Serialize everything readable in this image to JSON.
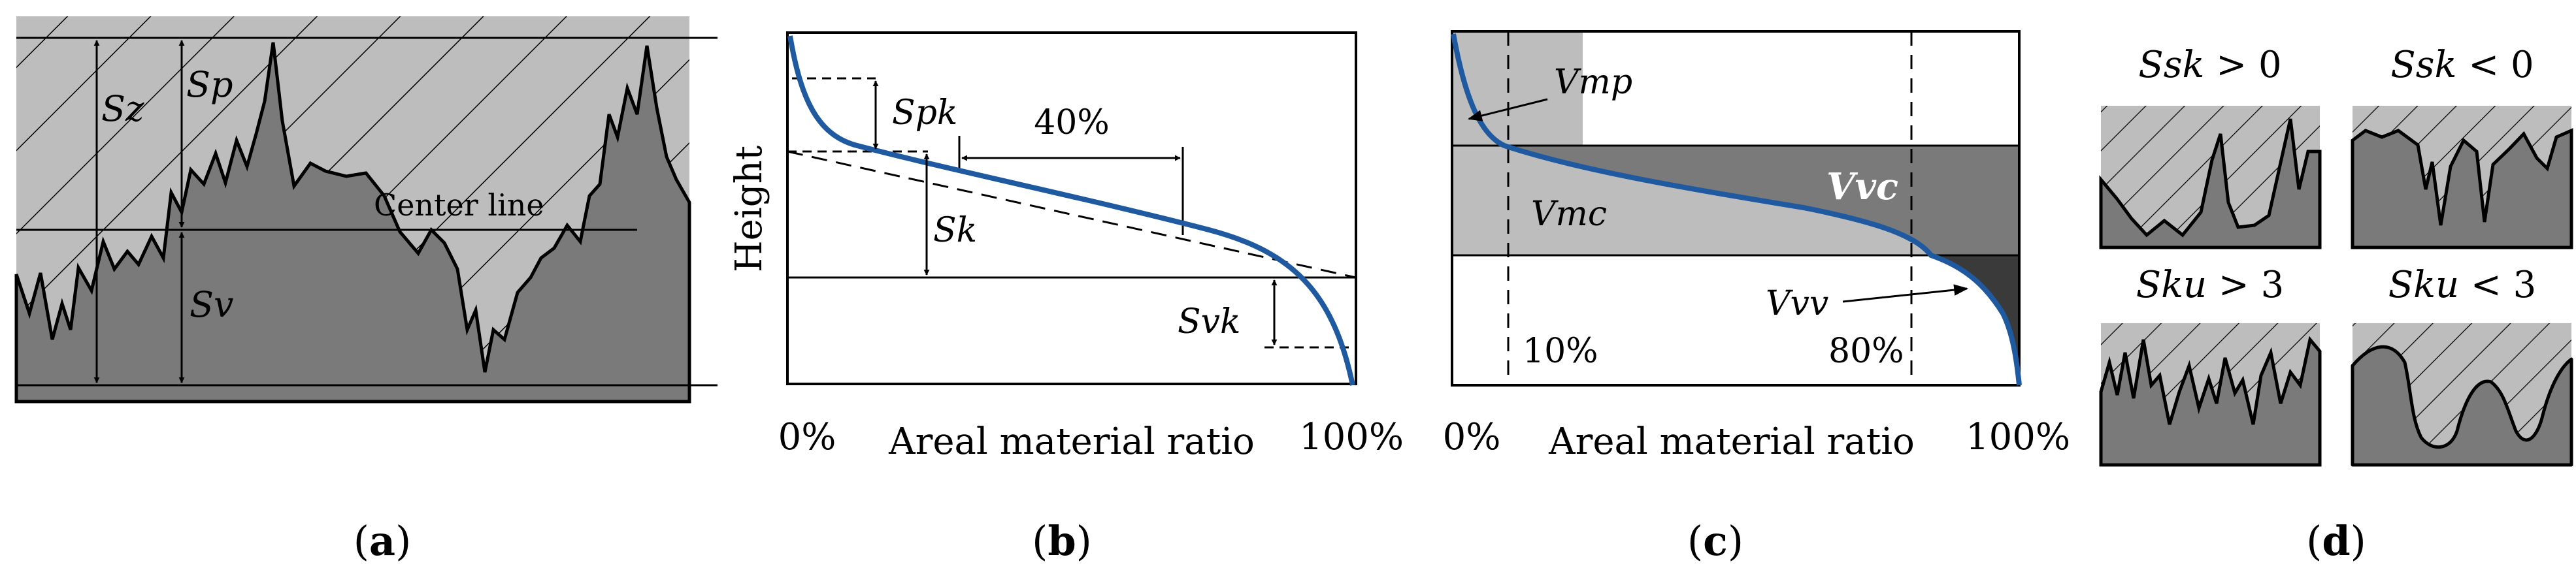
{
  "panel_a": {
    "labels": {
      "sz": "Sz",
      "sp": "Sp",
      "sv": "Sv",
      "center": "Center line"
    },
    "caption": {
      "open": "(",
      "letter": "a",
      "close": ")"
    }
  },
  "panel_b": {
    "ylabel": "Height",
    "xlabel": "Areal material ratio",
    "x_start": "0%",
    "x_end": "100%",
    "labels": {
      "spk": "Spk",
      "sk": "Sk",
      "svk": "Svk",
      "window": "40%"
    },
    "caption": {
      "open": "(",
      "letter": "b",
      "close": ")"
    }
  },
  "panel_c": {
    "xlabel": "Areal material ratio",
    "x_start": "0%",
    "x_end": "100%",
    "labels": {
      "vmp": "Vmp",
      "vmc": "Vmc",
      "vvc": "Vvc",
      "vvv": "Vvv",
      "p10": "10%",
      "p80": "80%"
    },
    "caption": {
      "open": "(",
      "letter": "c",
      "close": ")"
    }
  },
  "panel_d": {
    "titles": {
      "ssk_pos": {
        "name": "Ssk",
        "rel": " > 0"
      },
      "ssk_neg": {
        "name": "Ssk",
        "rel": " < 0"
      },
      "sku_hi": {
        "name": "Sku",
        "rel": " > 3"
      },
      "sku_lo": {
        "name": "Sku",
        "rel": " < 3"
      }
    },
    "caption": {
      "open": "(",
      "letter": "d",
      "close": ")"
    }
  },
  "colors": {
    "light_gray": "#bdbdbd",
    "dark_gray": "#7a7a7a",
    "curve_blue": "#1f5aa0",
    "vvv_black": "#3a3a3a"
  }
}
